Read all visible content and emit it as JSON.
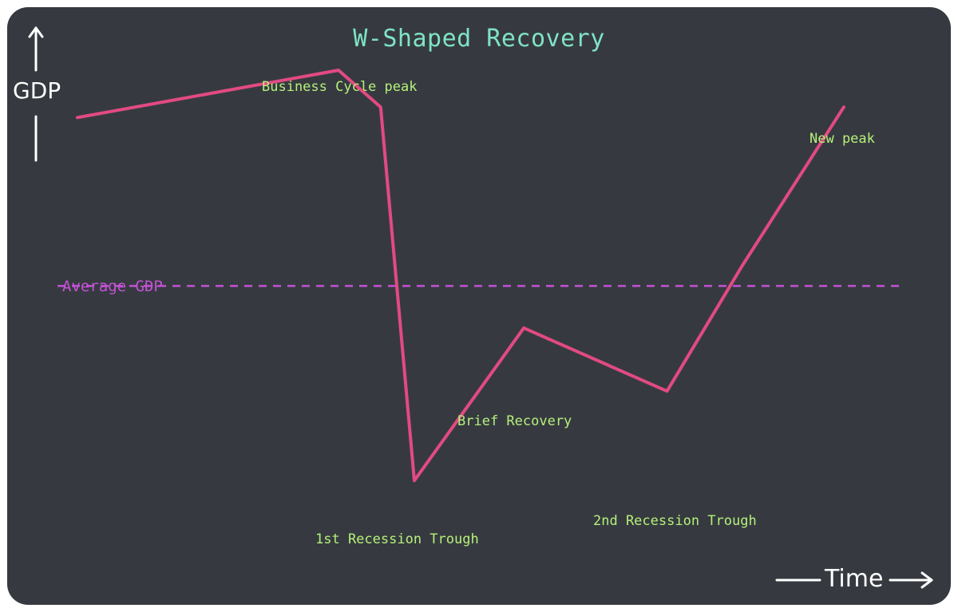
{
  "title": "W-Shaped Recovery",
  "y_axis_label": "GDP",
  "x_axis_label": "Time",
  "colors": {
    "background": "#363a40",
    "title": "#7fe3c6",
    "annotation": "#b5f07a",
    "line": "#e24a82",
    "average_line": "#c452d6",
    "axis": "#ffffff"
  },
  "annotations": {
    "peak": "Business Cycle peak",
    "trough1": "1st Recession Trough",
    "brief_recovery": "Brief Recovery",
    "trough2": "2nd Recession Trough",
    "new_peak": "New peak",
    "average": "Average GDP"
  },
  "chart_data": {
    "type": "line",
    "title": "W-Shaped Recovery",
    "xlabel": "Time",
    "ylabel": "GDP",
    "grid": false,
    "series": [
      {
        "x": [
          0,
          31,
          36,
          40,
          53,
          70,
          79,
          91
        ],
        "values": [
          77,
          86,
          79,
          8,
          37,
          25,
          49,
          79
        ]
      }
    ],
    "reference_lines": [
      {
        "label": "Average GDP",
        "y": 45
      }
    ]
  }
}
